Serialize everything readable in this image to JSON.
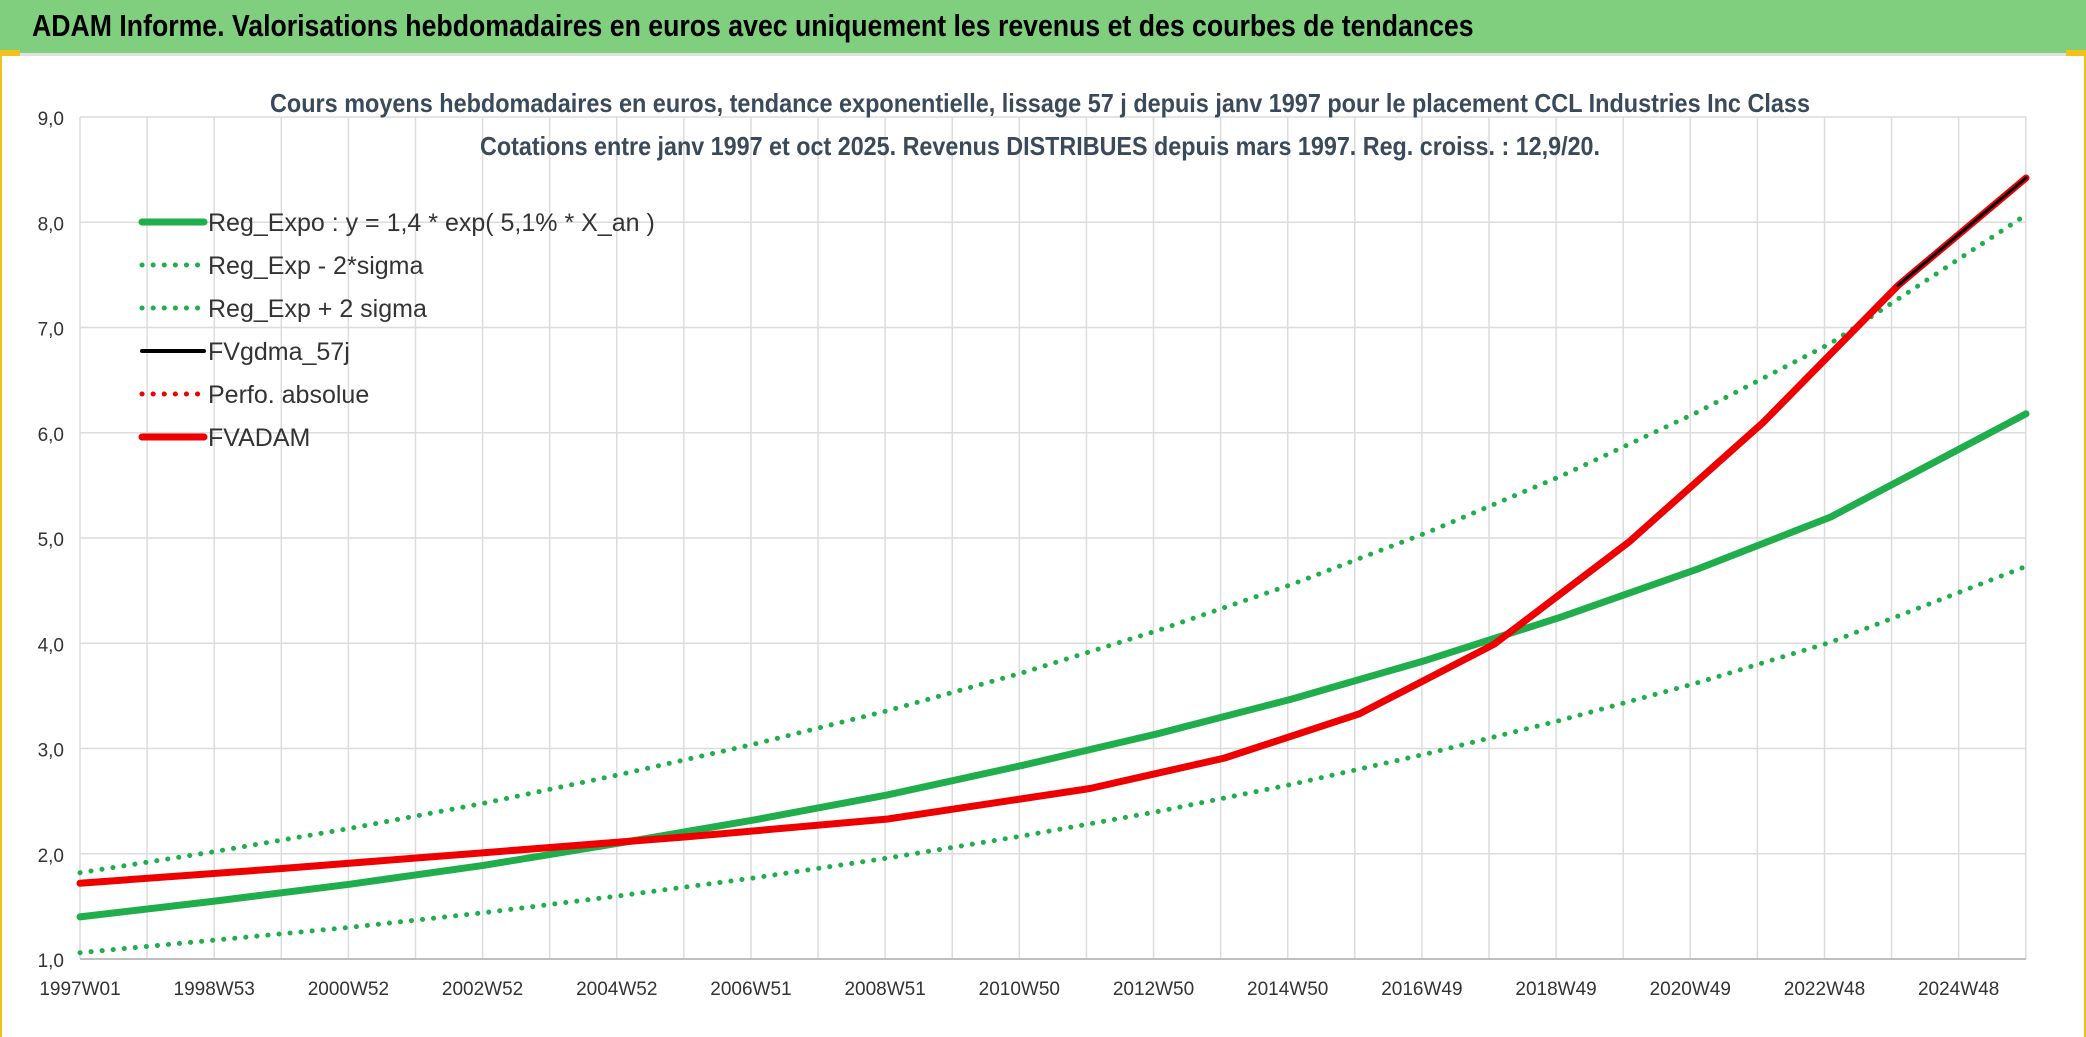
{
  "banner": {
    "title": "ADAM Informe. Valorisations hebdomadaires en euros avec uniquement les revenus et des courbes de tendances"
  },
  "colors": {
    "banner_bg": "#7fcf7f",
    "green": "#1fae4b",
    "red": "#ee0000",
    "black": "#000000",
    "grid": "#dcdcdc",
    "accent": "#f2c21a"
  },
  "chart_data": {
    "type": "line",
    "title": "Cours moyens hebdomadaires en euros, tendance exponentielle, lissage 57 j depuis janv 1997 pour le placement CCL Industries Inc Class",
    "subtitle": "Cotations entre janv 1997 et oct 2025. Revenus DISTRIBUES depuis mars 1997. Reg. croiss. : 12,9/20.",
    "xlabel": "",
    "ylabel": "",
    "ylim": [
      1.0,
      9.0
    ],
    "y_ticks": [
      "1,0",
      "2,0",
      "3,0",
      "4,0",
      "5,0",
      "6,0",
      "7,0",
      "8,0",
      "9,0"
    ],
    "x_tick_labels": [
      "1997W01",
      "1998W53",
      "2000W52",
      "2002W52",
      "2004W52",
      "2006W51",
      "2008W51",
      "2010W50",
      "2012W50",
      "2014W50",
      "2016W49",
      "2018W49",
      "2020W49",
      "2022W48",
      "2024W48"
    ],
    "xlim": [
      1997.0,
      2025.9
    ],
    "grid": true,
    "legend_position": "top-left",
    "series": [
      {
        "name": "Reg_Expo : y = 1,4 * exp( 5,1% *  X_an )",
        "style": "solid-thick",
        "color": "#1fae4b",
        "x": [
          1997,
          1999,
          2001,
          2003,
          2005,
          2007,
          2009,
          2011,
          2013,
          2015,
          2017,
          2019,
          2021,
          2023,
          2025.9
        ],
        "y": [
          1.4,
          1.55,
          1.71,
          1.89,
          2.1,
          2.32,
          2.56,
          2.84,
          3.14,
          3.47,
          3.84,
          4.25,
          4.7,
          5.2,
          6.18
        ]
      },
      {
        "name": "Reg_Exp - 2*sigma",
        "style": "dotted",
        "color": "#1fae4b",
        "x": [
          1997,
          1999,
          2001,
          2003,
          2005,
          2007,
          2009,
          2011,
          2013,
          2015,
          2017,
          2019,
          2021,
          2023,
          2025.9
        ],
        "y": [
          1.06,
          1.18,
          1.3,
          1.44,
          1.6,
          1.77,
          1.96,
          2.17,
          2.4,
          2.66,
          2.95,
          3.27,
          3.62,
          4.01,
          4.73
        ]
      },
      {
        "name": "Reg_Exp + 2 sigma",
        "style": "dotted",
        "color": "#1fae4b",
        "x": [
          1997,
          1999,
          2001,
          2003,
          2005,
          2007,
          2009,
          2011,
          2013,
          2015,
          2017,
          2019,
          2021,
          2023,
          2025.9
        ],
        "y": [
          1.82,
          2.02,
          2.24,
          2.48,
          2.75,
          3.04,
          3.36,
          3.72,
          4.12,
          4.56,
          5.05,
          5.59,
          6.19,
          6.85,
          8.07
        ]
      },
      {
        "name": "FVgdma_57j",
        "style": "solid",
        "color": "#000000",
        "x": [
          1997,
          2000,
          2003,
          2006,
          2009,
          2012,
          2014,
          2016,
          2018,
          2020,
          2022,
          2024,
          2025.9
        ],
        "y": [
          1.72,
          1.86,
          2.01,
          2.16,
          2.33,
          2.62,
          2.91,
          3.33,
          3.99,
          4.96,
          6.1,
          7.4,
          8.42
        ]
      },
      {
        "name": "Perfo. absolue",
        "style": "dotted",
        "color": "#ee0000",
        "x": [
          1997,
          2000,
          2003,
          2006,
          2009,
          2012,
          2014,
          2016,
          2018,
          2020,
          2022,
          2024,
          2025.9
        ],
        "y": [
          1.72,
          1.86,
          2.01,
          2.16,
          2.33,
          2.62,
          2.91,
          3.33,
          3.99,
          4.96,
          6.1,
          7.4,
          8.42
        ]
      },
      {
        "name": "FVADAM",
        "style": "solid-thick",
        "color": "#ee0000",
        "x": [
          1997,
          2000,
          2003,
          2006,
          2009,
          2012,
          2014,
          2016,
          2018,
          2020,
          2022,
          2024,
          2025.9
        ],
        "y": [
          1.72,
          1.86,
          2.01,
          2.16,
          2.33,
          2.62,
          2.91,
          3.33,
          3.99,
          4.96,
          6.1,
          7.4,
          8.42
        ]
      }
    ]
  }
}
